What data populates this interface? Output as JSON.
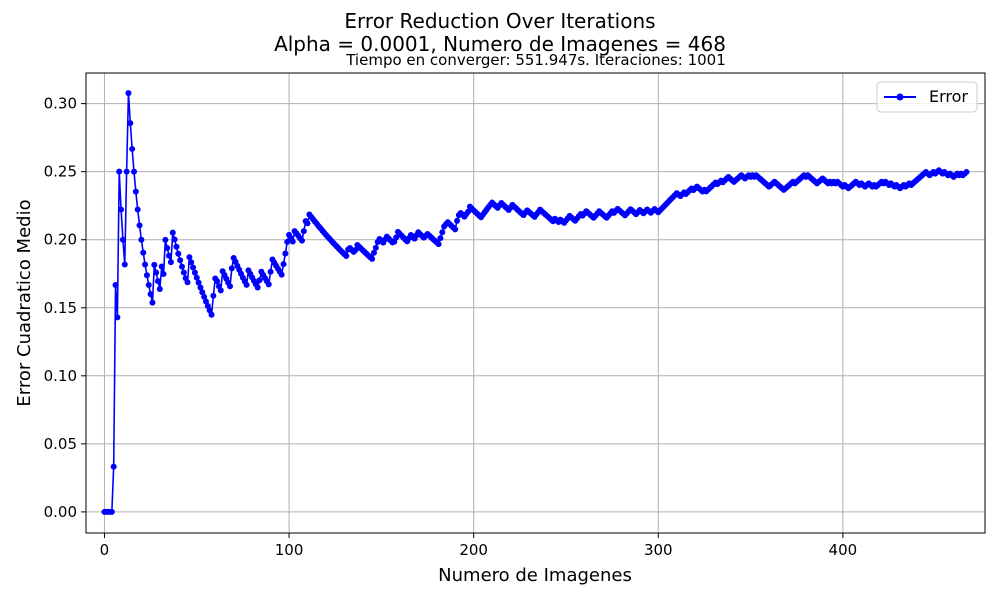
{
  "chart_data": {
    "type": "line",
    "title": "Error Reduction Over Iterations",
    "title_line2": "Alpha = 0.0001, Numero de Imagenes = 468",
    "subtitle": "Tiempo en converger: 551.947s.  Iteraciones: 1001",
    "xlabel": "Numero de Imagenes",
    "ylabel": "Error Cuadratico Medio",
    "xlim": [
      -10,
      477
    ],
    "ylim": [
      -0.0155,
      0.3225
    ],
    "xticks": [
      0,
      100,
      200,
      300,
      400
    ],
    "yticks": [
      0.0,
      0.05,
      0.1,
      0.15,
      0.2,
      0.25,
      0.3
    ],
    "ytick_labels": [
      "0.00",
      "0.05",
      "0.10",
      "0.15",
      "0.20",
      "0.25",
      "0.30"
    ],
    "grid": true,
    "legend_position": "upper-right",
    "series": [
      {
        "name": "Error",
        "color": "#0000ff",
        "marker": "circle",
        "x": [
          0,
          1,
          2,
          3,
          4,
          5,
          6,
          7,
          8,
          9,
          10,
          11,
          12,
          13,
          14,
          15,
          16,
          17,
          18,
          19,
          20,
          21,
          22,
          23,
          24,
          25,
          26,
          27,
          28,
          29,
          30,
          31,
          32,
          33,
          34,
          35,
          36,
          37,
          38,
          39,
          40,
          41,
          42,
          43,
          44,
          45,
          46,
          47,
          48,
          49,
          50,
          51,
          52,
          53,
          54,
          55,
          56,
          57,
          58,
          59,
          60,
          61,
          62,
          63,
          64,
          65,
          66,
          67,
          68,
          69,
          70,
          71,
          72,
          73,
          74,
          75,
          76,
          77,
          78,
          79,
          80,
          81,
          82,
          83,
          84,
          85,
          86,
          87,
          88,
          89,
          90,
          91,
          92,
          93,
          94,
          95,
          96,
          97,
          98,
          99,
          100,
          101,
          102,
          103,
          104,
          105,
          106,
          107,
          108,
          109,
          110,
          111,
          112,
          113,
          114,
          115,
          116,
          117,
          118,
          119,
          120,
          121,
          122,
          123,
          124,
          125,
          126,
          127,
          128,
          129,
          130,
          131,
          132,
          133,
          134,
          135,
          136,
          137,
          138,
          139,
          140,
          141,
          142,
          143,
          144,
          145,
          146,
          147,
          148,
          149,
          150,
          151,
          152,
          153,
          154,
          155,
          156,
          157,
          158,
          159,
          160,
          161,
          162,
          163,
          164,
          165,
          166,
          167,
          168,
          169,
          170,
          171,
          172,
          173,
          174,
          175,
          176,
          177,
          178,
          179,
          180,
          181,
          182,
          183,
          184,
          185,
          186,
          187,
          188,
          189,
          190,
          191,
          192,
          193,
          194,
          195,
          196,
          197,
          198,
          199,
          200,
          201,
          202,
          203,
          204,
          205,
          206,
          207,
          208,
          209,
          210,
          211,
          212,
          213,
          214,
          215,
          216,
          217,
          218,
          219,
          220,
          221,
          222,
          223,
          224,
          225,
          226,
          227,
          228,
          229,
          230,
          231,
          232,
          233,
          234,
          235,
          236,
          237,
          238,
          239,
          240,
          241,
          242,
          243,
          244,
          245,
          246,
          247,
          248,
          249,
          250,
          251,
          252,
          253,
          254,
          255,
          256,
          257,
          258,
          259,
          260,
          261,
          262,
          263,
          264,
          265,
          266,
          267,
          268,
          269,
          270,
          271,
          272,
          273,
          274,
          275,
          276,
          277,
          278,
          279,
          280,
          281,
          282,
          283,
          284,
          285,
          286,
          287,
          288,
          289,
          290,
          291,
          292,
          293,
          294,
          295,
          296,
          297,
          298,
          299,
          300,
          301,
          302,
          303,
          304,
          305,
          306,
          307,
          308,
          309,
          310,
          311,
          312,
          313,
          314,
          315,
          316,
          317,
          318,
          319,
          320,
          321,
          322,
          323,
          324,
          325,
          326,
          327,
          328,
          329,
          330,
          331,
          332,
          333,
          334,
          335,
          336,
          337,
          338,
          339,
          340,
          341,
          342,
          343,
          344,
          345,
          346,
          347,
          348,
          349,
          350,
          351,
          352,
          353,
          354,
          355,
          356,
          357,
          358,
          359,
          360,
          361,
          362,
          363,
          364,
          365,
          366,
          367,
          368,
          369,
          370,
          371,
          372,
          373,
          374,
          375,
          376,
          377,
          378,
          379,
          380,
          381,
          382,
          383,
          384,
          385,
          386,
          387,
          388,
          389,
          390,
          391,
          392,
          393,
          394,
          395,
          396,
          397,
          398,
          399,
          400,
          401,
          402,
          403,
          404,
          405,
          406,
          407,
          408,
          409,
          410,
          411,
          412,
          413,
          414,
          415,
          416,
          417,
          418,
          419,
          420,
          421,
          422,
          423,
          424,
          425,
          426,
          427,
          428,
          429,
          430,
          431,
          432,
          433,
          434,
          435,
          436,
          437,
          438,
          439,
          440,
          441,
          442,
          443,
          444,
          445,
          446,
          447,
          448,
          449,
          450,
          451,
          452,
          453,
          454,
          455,
          456,
          457,
          458,
          459,
          460,
          461,
          462,
          463,
          464,
          465,
          466,
          467
        ],
        "y": [
          0,
          0,
          0,
          0,
          0,
          0.0333,
          0.1667,
          0.1429,
          0.25,
          0.2222,
          0.2,
          0.1818,
          0.25,
          0.3077,
          0.2857,
          0.2667,
          0.25,
          0.2353,
          0.2222,
          0.2105,
          0.2,
          0.1905,
          0.1818,
          0.1739,
          0.1667,
          0.16,
          0.1538,
          0.1815,
          0.1759,
          0.1696,
          0.1638,
          0.1803,
          0.1748,
          0.1999,
          0.1939,
          0.1882,
          0.1835,
          0.2052,
          0.2002,
          0.1948,
          0.1897,
          0.1849,
          0.1802,
          0.1759,
          0.1717,
          0.1687,
          0.1872,
          0.1834,
          0.1796,
          0.1758,
          0.1721,
          0.1685,
          0.1649,
          0.1614,
          0.158,
          0.1546,
          0.1513,
          0.1481,
          0.1449,
          0.1588,
          0.1715,
          0.1696,
          0.1658,
          0.1628,
          0.1768,
          0.1741,
          0.1713,
          0.1685,
          0.1658,
          0.1789,
          0.1866,
          0.1838,
          0.1808,
          0.1779,
          0.175,
          0.1721,
          0.1694,
          0.1668,
          0.1775,
          0.1749,
          0.1723,
          0.1698,
          0.1673,
          0.1649,
          0.1702,
          0.1765,
          0.1741,
          0.1718,
          0.1695,
          0.1672,
          0.1765,
          0.1855,
          0.1832,
          0.1809,
          0.1787,
          0.1765,
          0.1743,
          0.1821,
          0.1899,
          0.1984,
          0.2036,
          0.2011,
          0.1987,
          0.2063,
          0.2047,
          0.2029,
          0.2011,
          0.1993,
          0.2063,
          0.2137,
          0.2121,
          0.2185,
          0.2168,
          0.2151,
          0.2134,
          0.2117,
          0.21,
          0.2084,
          0.2068,
          0.2052,
          0.2036,
          0.2021,
          0.2006,
          0.1991,
          0.1976,
          0.1962,
          0.1948,
          0.1934,
          0.192,
          0.1906,
          0.1893,
          0.188,
          0.1928,
          0.1939,
          0.1924,
          0.1911,
          0.1924,
          0.1961,
          0.1948,
          0.1935,
          0.1922,
          0.1909,
          0.1896,
          0.1883,
          0.1871,
          0.1859,
          0.1904,
          0.1941,
          0.1983,
          0.2005,
          0.1992,
          0.1979,
          0.2002,
          0.2023,
          0.2008,
          0.1994,
          0.198,
          0.1985,
          0.2016,
          0.2058,
          0.2043,
          0.2029,
          0.2015,
          0.2001,
          0.1988,
          0.2012,
          0.2035,
          0.2021,
          0.2008,
          0.2032,
          0.2055,
          0.2041,
          0.2028,
          0.2015,
          0.2029,
          0.2042,
          0.203,
          0.2017,
          0.2004,
          0.1992,
          0.198,
          0.1968,
          0.2012,
          0.2055,
          0.2097,
          0.2115,
          0.2128,
          0.2115,
          0.2102,
          0.2089,
          0.2076,
          0.2138,
          0.2181,
          0.2196,
          0.2183,
          0.217,
          0.2188,
          0.2206,
          0.2243,
          0.2229,
          0.2216,
          0.2203,
          0.219,
          0.2177,
          0.2165,
          0.2184,
          0.2203,
          0.2221,
          0.2239,
          0.2256,
          0.2273,
          0.226,
          0.2247,
          0.2234,
          0.2252,
          0.227,
          0.2257,
          0.2244,
          0.2231,
          0.2218,
          0.2237,
          0.2256,
          0.2243,
          0.223,
          0.2217,
          0.2205,
          0.2193,
          0.2181,
          0.2199,
          0.2216,
          0.2204,
          0.2192,
          0.218,
          0.2168,
          0.2186,
          0.2203,
          0.2221,
          0.2208,
          0.2196,
          0.2184,
          0.2172,
          0.216,
          0.2148,
          0.2136,
          0.2154,
          0.2142,
          0.213,
          0.2148,
          0.2136,
          0.2124,
          0.2141,
          0.2158,
          0.2175,
          0.2163,
          0.2151,
          0.2139,
          0.2156,
          0.2173,
          0.2189,
          0.2177,
          0.2193,
          0.2209,
          0.2197,
          0.2185,
          0.2173,
          0.2161,
          0.2177,
          0.2193,
          0.2209,
          0.2197,
          0.2185,
          0.2173,
          0.2161,
          0.2177,
          0.2193,
          0.2209,
          0.2197,
          0.2212,
          0.2227,
          0.2215,
          0.2203,
          0.2191,
          0.2179,
          0.2194,
          0.2209,
          0.2224,
          0.2212,
          0.22,
          0.2188,
          0.2203,
          0.2218,
          0.2206,
          0.2194,
          0.2208,
          0.2222,
          0.221,
          0.2198,
          0.2212,
          0.2226,
          0.2214,
          0.2202,
          0.2216,
          0.223,
          0.2244,
          0.2258,
          0.2272,
          0.2286,
          0.23,
          0.2314,
          0.2328,
          0.2342,
          0.2331,
          0.232,
          0.2334,
          0.2348,
          0.2336,
          0.235,
          0.2363,
          0.2376,
          0.2364,
          0.2377,
          0.239,
          0.2378,
          0.2366,
          0.2354,
          0.2367,
          0.2355,
          0.2368,
          0.2381,
          0.2394,
          0.2407,
          0.242,
          0.2408,
          0.2421,
          0.2434,
          0.2422,
          0.2435,
          0.2448,
          0.2461,
          0.2449,
          0.2437,
          0.2425,
          0.2438,
          0.245,
          0.2462,
          0.2474,
          0.2462,
          0.245,
          0.2462,
          0.2474,
          0.2462,
          0.2474,
          0.2462,
          0.2474,
          0.2462,
          0.245,
          0.2438,
          0.2426,
          0.2414,
          0.2402,
          0.239,
          0.2402,
          0.2414,
          0.2426,
          0.2414,
          0.2402,
          0.239,
          0.2378,
          0.2366,
          0.2378,
          0.239,
          0.2402,
          0.2414,
          0.2426,
          0.2414,
          0.2426,
          0.2438,
          0.245,
          0.2462,
          0.2474,
          0.2462,
          0.2474,
          0.2462,
          0.245,
          0.2438,
          0.2426,
          0.2414,
          0.2426,
          0.2438,
          0.245,
          0.2438,
          0.2426,
          0.2414,
          0.2426,
          0.2414,
          0.2426,
          0.2414,
          0.2426,
          0.2414,
          0.2402,
          0.239,
          0.2402,
          0.239,
          0.2378,
          0.239,
          0.2402,
          0.2414,
          0.2426,
          0.2414,
          0.2402,
          0.2414,
          0.2402,
          0.239,
          0.2402,
          0.2414,
          0.2402,
          0.239,
          0.2402,
          0.239,
          0.2402,
          0.2414,
          0.2426,
          0.2414,
          0.2426,
          0.2414,
          0.2402,
          0.2414,
          0.2402,
          0.239,
          0.2402,
          0.239,
          0.2378,
          0.239,
          0.2402,
          0.239,
          0.2402,
          0.2414,
          0.2402,
          0.2414,
          0.2426,
          0.2438,
          0.245,
          0.2462,
          0.2474,
          0.2486,
          0.2498,
          0.2486,
          0.2474,
          0.2486,
          0.2498,
          0.2486,
          0.2498,
          0.251,
          0.2498,
          0.2486,
          0.2498,
          0.2486,
          0.2474,
          0.2486,
          0.2474,
          0.2462,
          0.2474,
          0.2486,
          0.2474,
          0.2486,
          0.2474,
          0.2486,
          0.2498
        ]
      }
    ]
  }
}
